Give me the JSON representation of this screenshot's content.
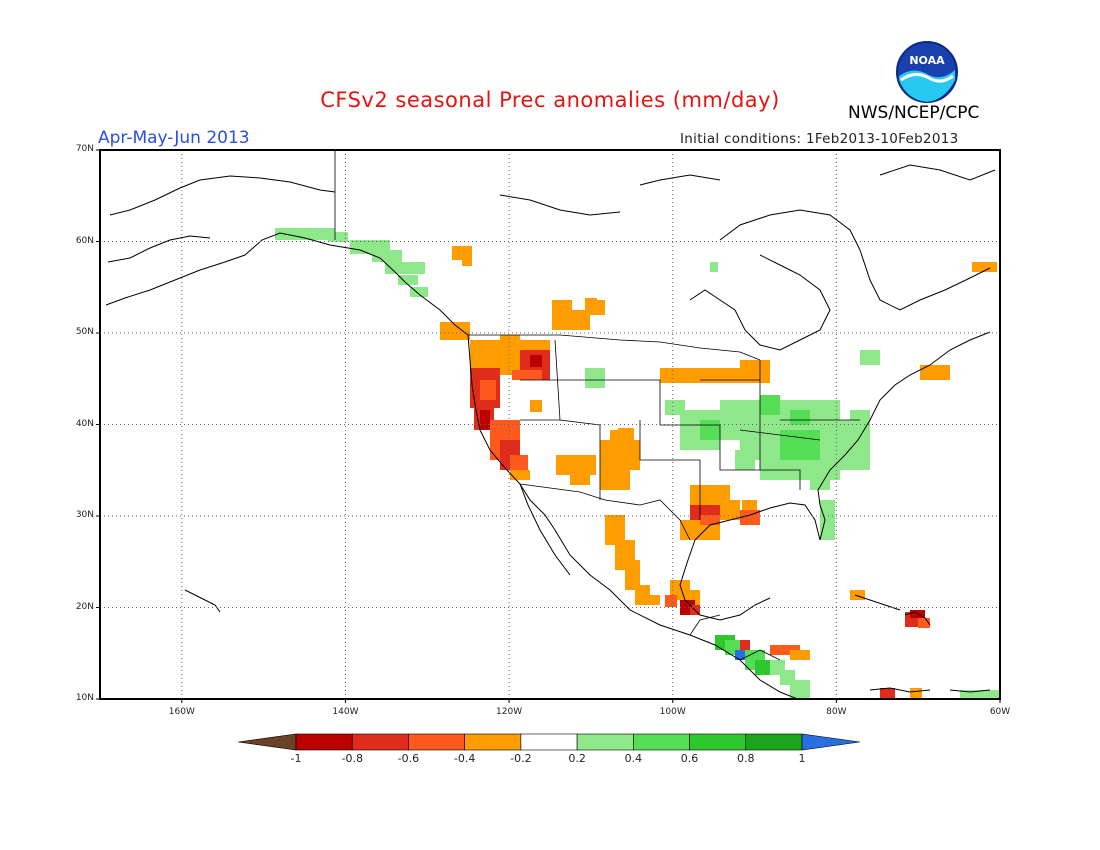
{
  "header": {
    "title": "CFSv2 seasonal Prec anomalies (mm/day)",
    "period": "Apr-May-Jun 2013",
    "initial_conditions": "Initial conditions: 1Feb2013-10Feb2013",
    "agency": "NWS/NCEP/CPC",
    "logo_text": "NOAA"
  },
  "map": {
    "lat_ticks": [
      "70N",
      "60N",
      "50N",
      "40N",
      "30N",
      "20N",
      "10N"
    ],
    "lon_ticks": [
      "160W",
      "140W",
      "120W",
      "100W",
      "80W",
      "60W"
    ],
    "lat_range": [
      10,
      70
    ],
    "lon_range": [
      -170,
      -60
    ],
    "grid": "dotted"
  },
  "colorbar": {
    "labels": [
      "-1",
      "-0.8",
      "-0.6",
      "-0.4",
      "-0.2",
      "0.2",
      "0.4",
      "0.6",
      "0.8",
      "1"
    ],
    "colors": [
      "#6b4226",
      "#bb0000",
      "#e02c1a",
      "#ff5a1e",
      "#ff9c00",
      "#ffffff",
      "#8ee88a",
      "#55dd55",
      "#2ec82e",
      "#1aa51a",
      "#2a6fe0"
    ]
  },
  "colors": {
    "dry_light": "#ff9c00",
    "dry_mid": "#ff5a1e",
    "dry_strong": "#e02c1a",
    "dry_extreme": "#bb0000",
    "wet_light": "#8ee88a",
    "wet_mid": "#55dd55",
    "wet_strong": "#2ec82e",
    "wet_blue": "#2a6fe0"
  }
}
